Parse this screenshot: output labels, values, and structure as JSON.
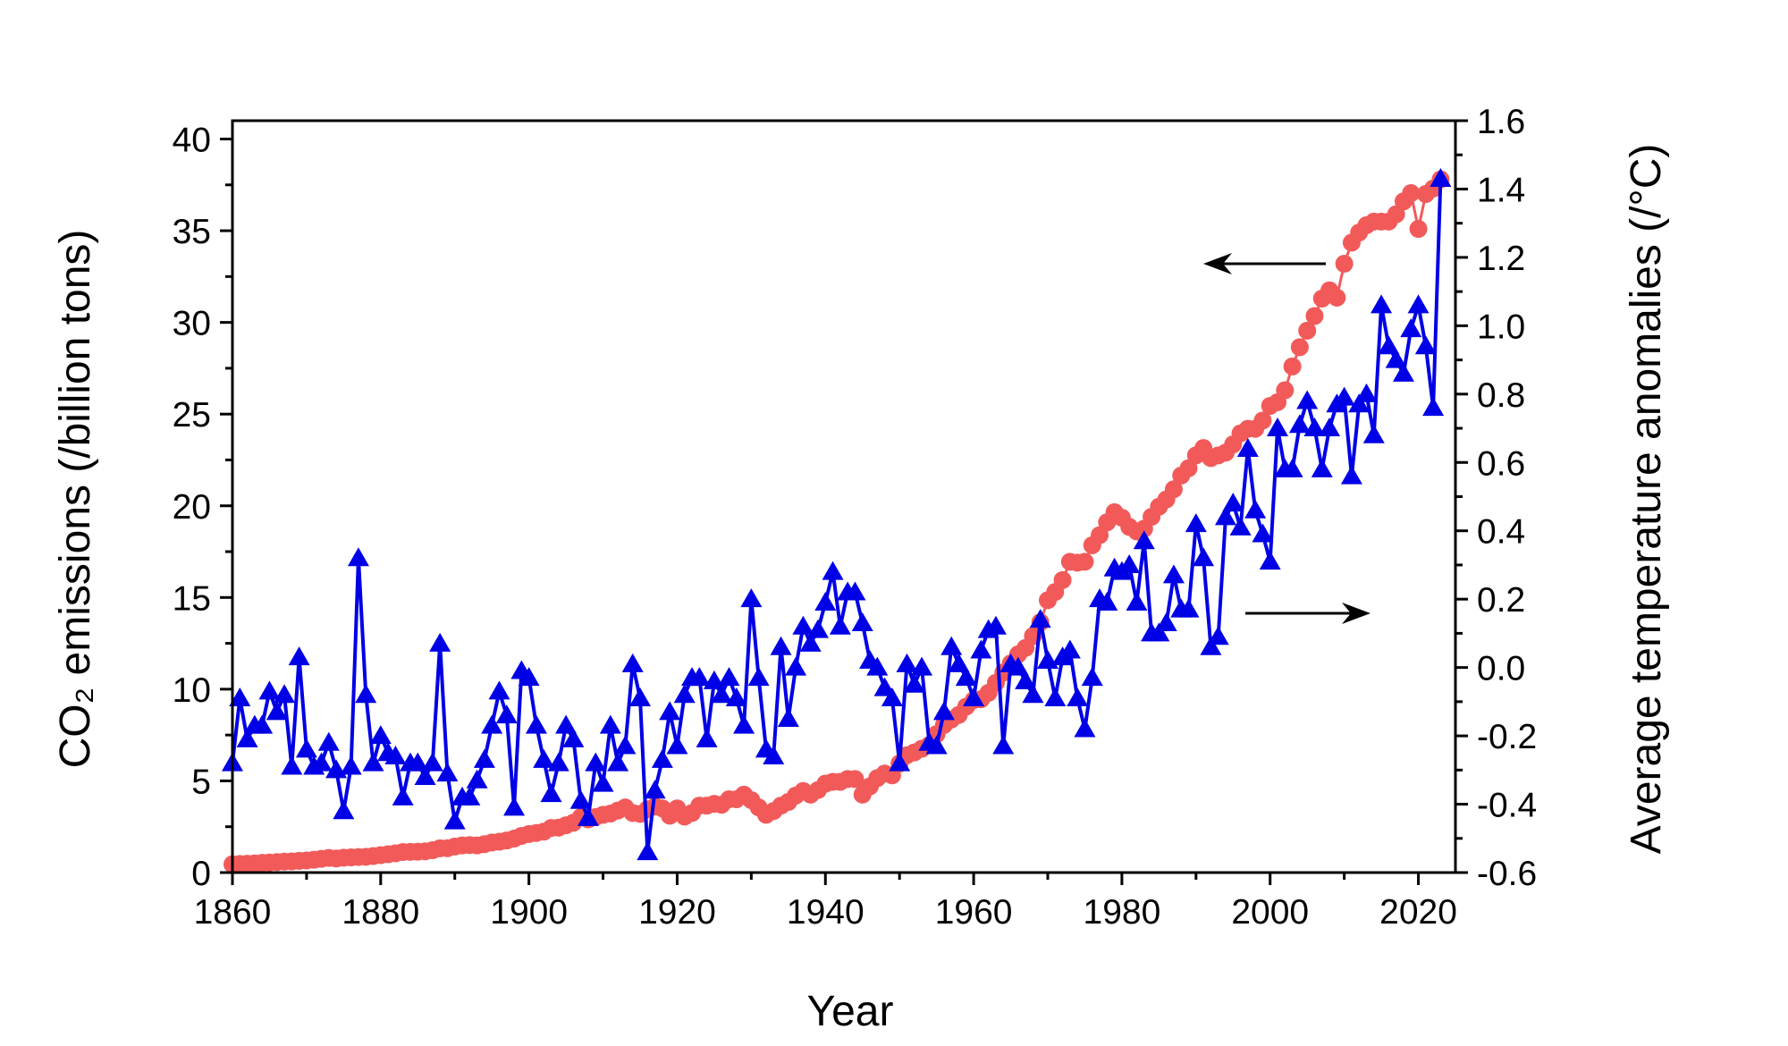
{
  "chart_data": {
    "type": "line",
    "title": "",
    "xlabel": "Year",
    "ylabel_left": "CO₂ emissions (/billion tons)",
    "ylabel_right": "Average temperature anomalies (/°C)",
    "xlim": [
      1860,
      2025
    ],
    "ylim_left": [
      0,
      41
    ],
    "ylim_right": [
      -0.6,
      1.6
    ],
    "x_ticks": [
      1860,
      1880,
      1900,
      1920,
      1940,
      1960,
      1980,
      2000,
      2020
    ],
    "y_left_ticks": [
      0,
      5,
      10,
      15,
      20,
      25,
      30,
      35,
      40
    ],
    "y_right_ticks": [
      "-0.6",
      "-0.4",
      "-0.2",
      "0.0",
      "0.2",
      "0.4",
      "0.6",
      "0.8",
      "1.0",
      "1.2",
      "1.4",
      "1.6"
    ],
    "grid": false,
    "annotations": [
      {
        "type": "arrow",
        "direction": "left",
        "meaning": "CO2 series uses left axis"
      },
      {
        "type": "arrow",
        "direction": "right",
        "meaning": "temperature series uses right axis"
      }
    ],
    "x": [
      1860,
      1861,
      1862,
      1863,
      1864,
      1865,
      1866,
      1867,
      1868,
      1869,
      1870,
      1871,
      1872,
      1873,
      1874,
      1875,
      1876,
      1877,
      1878,
      1879,
      1880,
      1881,
      1882,
      1883,
      1884,
      1885,
      1886,
      1887,
      1888,
      1889,
      1890,
      1891,
      1892,
      1893,
      1894,
      1895,
      1896,
      1897,
      1898,
      1899,
      1900,
      1901,
      1902,
      1903,
      1904,
      1905,
      1906,
      1907,
      1908,
      1909,
      1910,
      1911,
      1912,
      1913,
      1914,
      1915,
      1916,
      1917,
      1918,
      1919,
      1920,
      1921,
      1922,
      1923,
      1924,
      1925,
      1926,
      1927,
      1928,
      1929,
      1930,
      1931,
      1932,
      1933,
      1934,
      1935,
      1936,
      1937,
      1938,
      1939,
      1940,
      1941,
      1942,
      1943,
      1944,
      1945,
      1946,
      1947,
      1948,
      1949,
      1950,
      1951,
      1952,
      1953,
      1954,
      1955,
      1956,
      1957,
      1958,
      1959,
      1960,
      1961,
      1962,
      1963,
      1964,
      1965,
      1966,
      1967,
      1968,
      1969,
      1970,
      1971,
      1972,
      1973,
      1974,
      1975,
      1976,
      1977,
      1978,
      1979,
      1980,
      1981,
      1982,
      1983,
      1984,
      1985,
      1986,
      1987,
      1988,
      1989,
      1990,
      1991,
      1992,
      1993,
      1994,
      1995,
      1996,
      1997,
      1998,
      1999,
      2000,
      2001,
      2002,
      2003,
      2004,
      2005,
      2006,
      2007,
      2008,
      2009,
      2010,
      2011,
      2012,
      2013,
      2014,
      2015,
      2016,
      2017,
      2018,
      2019,
      2020,
      2021,
      2022,
      2023
    ],
    "series": [
      {
        "axis": "left",
        "marker": "circle",
        "color": "#f25a5a",
        "values": [
          0.45,
          0.47,
          0.48,
          0.5,
          0.53,
          0.55,
          0.57,
          0.6,
          0.61,
          0.64,
          0.66,
          0.7,
          0.75,
          0.8,
          0.77,
          0.81,
          0.83,
          0.85,
          0.86,
          0.9,
          0.95,
          1.0,
          1.05,
          1.12,
          1.13,
          1.14,
          1.16,
          1.22,
          1.32,
          1.33,
          1.42,
          1.48,
          1.5,
          1.48,
          1.55,
          1.64,
          1.68,
          1.75,
          1.85,
          2.0,
          2.1,
          2.16,
          2.23,
          2.43,
          2.45,
          2.58,
          2.72,
          3.02,
          2.9,
          3.03,
          3.15,
          3.22,
          3.38,
          3.55,
          3.25,
          3.2,
          3.45,
          3.6,
          3.5,
          3.1,
          3.5,
          3.05,
          3.25,
          3.65,
          3.65,
          3.75,
          3.7,
          4.0,
          4.0,
          4.25,
          3.95,
          3.55,
          3.15,
          3.35,
          3.65,
          3.85,
          4.2,
          4.45,
          4.25,
          4.5,
          4.85,
          4.95,
          4.95,
          5.1,
          5.1,
          4.25,
          4.7,
          5.15,
          5.4,
          5.3,
          5.95,
          6.4,
          6.55,
          6.75,
          6.95,
          7.55,
          8.05,
          8.35,
          8.6,
          9.05,
          9.4,
          9.45,
          9.8,
          10.35,
          10.9,
          11.4,
          11.9,
          12.25,
          12.9,
          13.65,
          14.85,
          15.3,
          15.95,
          16.95,
          16.9,
          16.95,
          17.85,
          18.4,
          19.1,
          19.65,
          19.35,
          18.85,
          18.6,
          18.75,
          19.4,
          19.95,
          20.35,
          20.9,
          21.65,
          22.05,
          22.75,
          23.15,
          22.6,
          22.75,
          22.9,
          23.35,
          23.95,
          24.2,
          24.2,
          24.65,
          25.45,
          25.65,
          26.3,
          27.6,
          28.65,
          29.55,
          30.35,
          31.3,
          31.75,
          31.35,
          33.2,
          34.35,
          34.9,
          35.3,
          35.5,
          35.5,
          35.5,
          35.9,
          36.6,
          37.05,
          35.1,
          37.0,
          37.3,
          37.8
        ]
      },
      {
        "axis": "right",
        "marker": "triangle",
        "color": "#0000e6",
        "values": [
          -0.28,
          -0.09,
          -0.21,
          -0.17,
          -0.17,
          -0.07,
          -0.13,
          -0.08,
          -0.29,
          0.03,
          -0.24,
          -0.29,
          -0.28,
          -0.22,
          -0.3,
          -0.42,
          -0.29,
          0.32,
          -0.08,
          -0.28,
          -0.2,
          -0.25,
          -0.26,
          -0.38,
          -0.28,
          -0.28,
          -0.32,
          -0.28,
          0.07,
          -0.31,
          -0.45,
          -0.38,
          -0.38,
          -0.33,
          -0.27,
          -0.17,
          -0.07,
          -0.14,
          -0.41,
          -0.01,
          -0.03,
          -0.17,
          -0.27,
          -0.37,
          -0.28,
          -0.17,
          -0.21,
          -0.39,
          -0.44,
          -0.28,
          -0.34,
          -0.17,
          -0.28,
          -0.23,
          0.01,
          -0.09,
          -0.54,
          -0.36,
          -0.27,
          -0.13,
          -0.23,
          -0.08,
          -0.03,
          -0.03,
          -0.21,
          -0.04,
          -0.08,
          -0.03,
          -0.09,
          -0.17,
          0.2,
          -0.03,
          -0.24,
          -0.26,
          0.06,
          -0.15,
          0.0,
          0.12,
          0.07,
          0.11,
          0.19,
          0.28,
          0.12,
          0.22,
          0.22,
          0.13,
          0.02,
          0.0,
          -0.06,
          -0.09,
          -0.28,
          0.01,
          -0.05,
          0.0,
          -0.22,
          -0.23,
          -0.13,
          0.06,
          0.01,
          -0.03,
          -0.09,
          0.05,
          0.11,
          0.12,
          -0.23,
          0.01,
          0.0,
          -0.04,
          -0.08,
          0.14,
          0.02,
          -0.09,
          0.03,
          0.05,
          -0.09,
          -0.18,
          -0.03,
          0.2,
          0.19,
          0.29,
          0.28,
          0.3,
          0.19,
          0.37,
          0.1,
          0.1,
          0.13,
          0.27,
          0.17,
          0.17,
          0.42,
          0.32,
          0.06,
          0.09,
          0.44,
          0.48,
          0.41,
          0.64,
          0.46,
          0.39,
          0.31,
          0.7,
          0.58,
          0.58,
          0.71,
          0.78,
          0.7,
          0.58,
          0.7,
          0.77,
          0.79,
          0.56,
          0.77,
          0.8,
          0.68,
          1.06,
          0.94,
          0.9,
          0.86,
          0.99,
          1.06,
          0.94,
          0.76,
          1.43
        ]
      }
    ]
  }
}
